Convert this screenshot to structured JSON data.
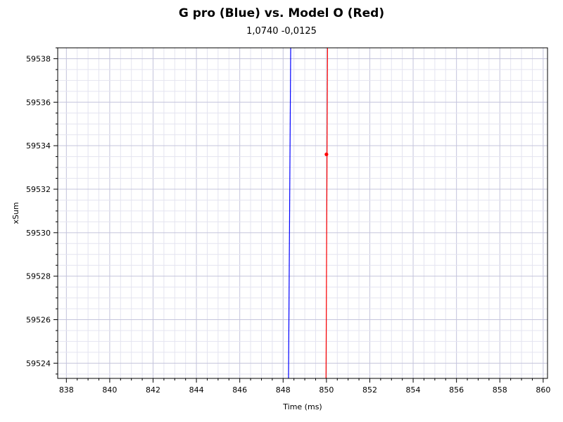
{
  "chart_data": {
    "type": "line",
    "title": "G pro (Blue) vs. Model O (Red)",
    "subtitle": "1,0740 -0,0125",
    "xlabel": "Time (ms)",
    "ylabel": "xSum",
    "xlim": [
      837.6,
      860.2
    ],
    "ylim": [
      59523.3,
      59538.5
    ],
    "x_ticks": [
      "838",
      "840",
      "842",
      "844",
      "846",
      "848",
      "850",
      "852",
      "854",
      "856",
      "858",
      "860"
    ],
    "y_ticks": [
      "59524",
      "59526",
      "59528",
      "59530",
      "59532",
      "59534",
      "59536",
      "59538"
    ],
    "grid": true,
    "series": [
      {
        "name": "G pro (Blue)",
        "color": "#0000ff",
        "points": [
          [
            848.25,
            59523.3
          ],
          [
            848.35,
            59538.5
          ]
        ]
      },
      {
        "name": "Model O (Red)",
        "color": "#ff0000",
        "points": [
          [
            849.98,
            59523.3
          ],
          [
            850.05,
            59538.5
          ]
        ],
        "marker": [
          850.0,
          59533.6
        ]
      }
    ]
  }
}
